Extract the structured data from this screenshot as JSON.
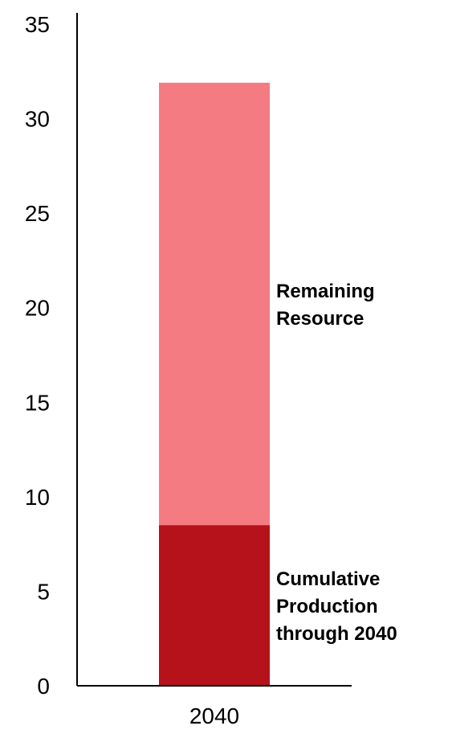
{
  "chart_data": {
    "type": "bar",
    "stacked": true,
    "categories": [
      "2040"
    ],
    "series": [
      {
        "name": "Cumulative Production through 2040",
        "values": [
          8.5
        ],
        "color": "#b5121b"
      },
      {
        "name": "Remaining Resource",
        "values": [
          23.4
        ],
        "color": "#f47b82"
      }
    ],
    "segment_labels": [
      [
        "Cumulative",
        "Production",
        "through 2040"
      ],
      [
        "Remaining",
        "Resource"
      ]
    ],
    "title": "",
    "xlabel": "",
    "ylabel": "",
    "ylim": [
      0,
      35
    ],
    "yticks": [
      "0",
      "5",
      "10",
      "15",
      "20",
      "25",
      "30",
      "35"
    ],
    "grid": false,
    "legend": "inline-right"
  }
}
